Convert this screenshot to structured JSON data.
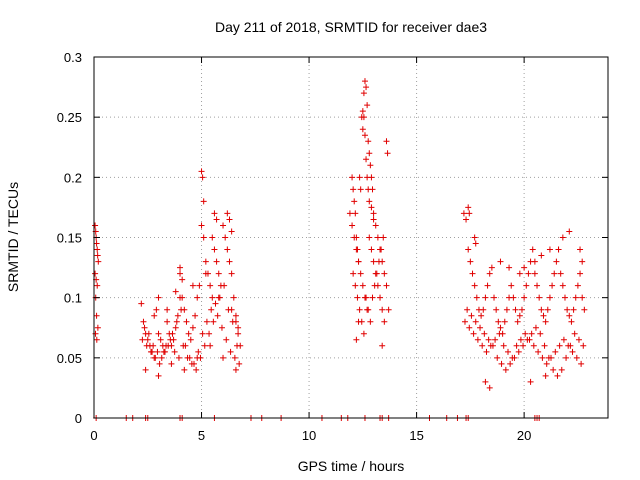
{
  "chart_data": {
    "type": "scatter",
    "title": "Day 211 of 2018, SRMTID for receiver dae3",
    "xlabel": "GPS time / hours",
    "ylabel": "SRMTID / TECUs",
    "xlim": [
      0,
      23.9
    ],
    "ylim": [
      0,
      0.3
    ],
    "xticks": [
      0,
      5,
      10,
      15,
      20
    ],
    "xtick_labels": [
      "0",
      "5",
      "10",
      "15",
      "20"
    ],
    "yticks": [
      0,
      0.05,
      0.1,
      0.15,
      0.2,
      0.25,
      0.3
    ],
    "ytick_labels": [
      "0",
      "0.05",
      "0.1",
      "0.15",
      "0.2",
      "0.25",
      "0.3"
    ],
    "grid": true,
    "marker": "+",
    "color": "#e00000",
    "series": [
      {
        "name": "SRMTID",
        "x": [
          0.05,
          0.08,
          0.1,
          0.12,
          0.15,
          0.17,
          0.2,
          0.05,
          0.1,
          0.15,
          0.08,
          0.12,
          0.18,
          0.07,
          0.13,
          2.2,
          2.3,
          2.4,
          2.5,
          2.6,
          2.7,
          2.8,
          2.9,
          3.0,
          3.1,
          3.2,
          3.3,
          3.4,
          3.5,
          3.6,
          3.7,
          3.8,
          3.9,
          4.0,
          4.1,
          4.2,
          4.3,
          4.4,
          4.5,
          4.6,
          4.7,
          4.8,
          4.9,
          5.0,
          5.1,
          5.2,
          5.3,
          5.4,
          5.5,
          5.6,
          5.7,
          5.8,
          5.9,
          6.0,
          6.1,
          6.2,
          6.3,
          6.4,
          6.5,
          6.6,
          6.7,
          6.8,
          2.25,
          2.45,
          2.65,
          2.85,
          3.05,
          3.25,
          3.45,
          3.65,
          3.85,
          4.05,
          4.25,
          4.45,
          4.65,
          4.85,
          5.05,
          5.25,
          5.45,
          5.65,
          5.85,
          6.05,
          6.25,
          6.45,
          6.65,
          2.35,
          2.55,
          2.75,
          2.95,
          3.15,
          3.35,
          3.55,
          3.75,
          3.95,
          4.15,
          4.35,
          4.55,
          4.75,
          4.95,
          5.15,
          5.35,
          5.55,
          5.75,
          5.95,
          6.15,
          6.35,
          6.55,
          6.75,
          2.4,
          3.0,
          3.6,
          4.2,
          4.8,
          5.4,
          6.0,
          6.6,
          2.8,
          3.4,
          4.0,
          4.6,
          5.2,
          5.8,
          6.4,
          5.0,
          5.05,
          5.1,
          5.6,
          5.7,
          6.2,
          6.3,
          6.4,
          4.0,
          4.1,
          5.5,
          6.6,
          6.7,
          3.0,
          3.8,
          11.9,
          12.0,
          12.05,
          12.1,
          12.15,
          12.2,
          12.25,
          12.3,
          12.35,
          12.4,
          12.45,
          12.5,
          12.55,
          12.6,
          12.65,
          12.7,
          12.75,
          12.8,
          12.85,
          12.9,
          12.95,
          13.0,
          13.1,
          13.2,
          13.3,
          13.4,
          13.5,
          13.6,
          13.7,
          12.0,
          12.1,
          12.2,
          12.3,
          12.4,
          12.5,
          12.6,
          12.7,
          12.8,
          12.9,
          13.0,
          13.1,
          13.2,
          13.3,
          13.4,
          13.5,
          12.05,
          12.15,
          12.25,
          12.35,
          12.45,
          12.55,
          12.65,
          12.75,
          12.85,
          12.95,
          13.05,
          13.15,
          13.25,
          13.35,
          13.45,
          12.6,
          12.65,
          12.7,
          12.75,
          12.8,
          12.5,
          12.55,
          12.9,
          13.0,
          13.6,
          13.65,
          13.4,
          12.2,
          12.3,
          17.2,
          17.3,
          17.4,
          17.5,
          17.6,
          17.7,
          17.8,
          17.9,
          18.0,
          18.1,
          18.2,
          18.3,
          18.4,
          18.5,
          18.6,
          18.7,
          18.8,
          18.9,
          19.0,
          19.1,
          19.2,
          19.3,
          19.4,
          19.5,
          19.6,
          19.7,
          19.8,
          19.9,
          20.0,
          20.1,
          20.2,
          20.3,
          20.4,
          20.5,
          20.6,
          20.7,
          20.8,
          20.9,
          21.0,
          21.1,
          21.2,
          21.3,
          21.4,
          21.5,
          21.6,
          21.7,
          21.8,
          21.9,
          22.0,
          22.1,
          22.2,
          22.3,
          22.4,
          22.5,
          22.6,
          22.7,
          22.8,
          17.25,
          17.45,
          17.65,
          17.85,
          18.05,
          18.25,
          18.45,
          18.65,
          18.85,
          19.05,
          19.25,
          19.45,
          19.65,
          19.85,
          20.05,
          20.25,
          20.45,
          20.65,
          20.85,
          21.05,
          21.25,
          21.45,
          21.65,
          21.85,
          22.05,
          22.25,
          22.45,
          22.65,
          17.35,
          17.55,
          17.75,
          17.95,
          18.15,
          18.35,
          18.55,
          18.75,
          18.95,
          19.15,
          19.35,
          19.55,
          19.75,
          19.95,
          20.15,
          20.35,
          20.55,
          20.75,
          20.95,
          21.15,
          21.35,
          21.55,
          21.75,
          21.95,
          22.15,
          22.35,
          22.55,
          22.75,
          17.4,
          17.45,
          17.7,
          17.75,
          18.9,
          19.3,
          19.8,
          20.0,
          20.5,
          20.8,
          21.2,
          21.6,
          21.8,
          22.1,
          22.6,
          22.7,
          18.2,
          18.4,
          20.3,
          21.0,
          0.1,
          1.5,
          1.8,
          2.4,
          2.5,
          4.0,
          4.1,
          5.6,
          7.3,
          7.8,
          8.7,
          10.6,
          11.5,
          11.8,
          12.6,
          13.3,
          13.4,
          13.7,
          15.6,
          16.4,
          16.9,
          17.3,
          17.4,
          20.5,
          20.6,
          20.7
        ],
        "y": [
          0.16,
          0.155,
          0.15,
          0.145,
          0.14,
          0.135,
          0.13,
          0.12,
          0.115,
          0.11,
          0.1,
          0.085,
          0.075,
          0.07,
          0.065,
          0.095,
          0.08,
          0.07,
          0.065,
          0.06,
          0.055,
          0.05,
          0.09,
          0.07,
          0.065,
          0.06,
          0.055,
          0.08,
          0.07,
          0.06,
          0.065,
          0.075,
          0.085,
          0.12,
          0.1,
          0.09,
          0.08,
          0.07,
          0.065,
          0.075,
          0.085,
          0.1,
          0.11,
          0.16,
          0.15,
          0.13,
          0.12,
          0.11,
          0.1,
          0.14,
          0.13,
          0.12,
          0.11,
          0.16,
          0.15,
          0.14,
          0.13,
          0.12,
          0.1,
          0.085,
          0.07,
          0.06,
          0.065,
          0.06,
          0.055,
          0.05,
          0.045,
          0.055,
          0.06,
          0.07,
          0.08,
          0.09,
          0.06,
          0.05,
          0.045,
          0.055,
          0.07,
          0.08,
          0.09,
          0.095,
          0.1,
          0.11,
          0.09,
          0.08,
          0.06,
          0.075,
          0.07,
          0.06,
          0.055,
          0.05,
          0.06,
          0.065,
          0.055,
          0.05,
          0.06,
          0.05,
          0.045,
          0.04,
          0.05,
          0.06,
          0.07,
          0.08,
          0.085,
          0.075,
          0.065,
          0.055,
          0.05,
          0.045,
          0.04,
          0.035,
          0.045,
          0.04,
          0.05,
          0.06,
          0.05,
          0.04,
          0.085,
          0.09,
          0.1,
          0.11,
          0.12,
          0.1,
          0.09,
          0.205,
          0.2,
          0.18,
          0.17,
          0.165,
          0.17,
          0.165,
          0.155,
          0.125,
          0.115,
          0.15,
          0.08,
          0.075,
          0.1,
          0.105,
          0.17,
          0.2,
          0.19,
          0.18,
          0.17,
          0.15,
          0.14,
          0.13,
          0.2,
          0.19,
          0.25,
          0.24,
          0.27,
          0.28,
          0.275,
          0.26,
          0.23,
          0.22,
          0.21,
          0.2,
          0.19,
          0.17,
          0.16,
          0.15,
          0.14,
          0.13,
          0.12,
          0.11,
          0.09,
          0.16,
          0.15,
          0.14,
          0.13,
          0.12,
          0.11,
          0.1,
          0.09,
          0.15,
          0.14,
          0.13,
          0.12,
          0.11,
          0.1,
          0.09,
          0.08,
          0.12,
          0.11,
          0.1,
          0.09,
          0.08,
          0.07,
          0.1,
          0.09,
          0.08,
          0.1,
          0.11,
          0.12,
          0.13,
          0.14,
          0.15,
          0.235,
          0.215,
          0.2,
          0.19,
          0.18,
          0.255,
          0.25,
          0.175,
          0.165,
          0.23,
          0.22,
          0.06,
          0.065,
          0.08,
          0.17,
          0.165,
          0.14,
          0.13,
          0.12,
          0.11,
          0.1,
          0.09,
          0.085,
          0.09,
          0.1,
          0.11,
          0.12,
          0.125,
          0.1,
          0.09,
          0.08,
          0.075,
          0.07,
          0.08,
          0.09,
          0.1,
          0.11,
          0.1,
          0.09,
          0.08,
          0.085,
          0.09,
          0.1,
          0.11,
          0.12,
          0.13,
          0.14,
          0.12,
          0.11,
          0.1,
          0.09,
          0.085,
          0.08,
          0.09,
          0.1,
          0.11,
          0.12,
          0.13,
          0.14,
          0.12,
          0.11,
          0.1,
          0.09,
          0.085,
          0.08,
          0.09,
          0.1,
          0.11,
          0.12,
          0.1,
          0.09,
          0.08,
          0.075,
          0.07,
          0.065,
          0.06,
          0.055,
          0.06,
          0.065,
          0.07,
          0.06,
          0.055,
          0.05,
          0.06,
          0.065,
          0.07,
          0.065,
          0.06,
          0.055,
          0.05,
          0.045,
          0.05,
          0.055,
          0.06,
          0.065,
          0.06,
          0.055,
          0.05,
          0.045,
          0.09,
          0.085,
          0.08,
          0.075,
          0.07,
          0.065,
          0.06,
          0.05,
          0.045,
          0.04,
          0.045,
          0.05,
          0.055,
          0.06,
          0.065,
          0.07,
          0.075,
          0.07,
          0.06,
          0.05,
          0.04,
          0.035,
          0.04,
          0.05,
          0.06,
          0.07,
          0.065,
          0.06,
          0.175,
          0.17,
          0.15,
          0.145,
          0.13,
          0.125,
          0.12,
          0.125,
          0.13,
          0.135,
          0.14,
          0.14,
          0.15,
          0.155,
          0.14,
          0.13,
          0.03,
          0.025,
          0.03,
          0.035,
          0,
          0,
          0,
          0,
          0,
          0,
          0,
          0,
          0,
          0,
          0,
          0,
          0,
          0,
          0,
          0,
          0,
          0,
          0,
          0,
          0,
          0,
          0,
          0,
          0,
          0
        ]
      }
    ]
  }
}
